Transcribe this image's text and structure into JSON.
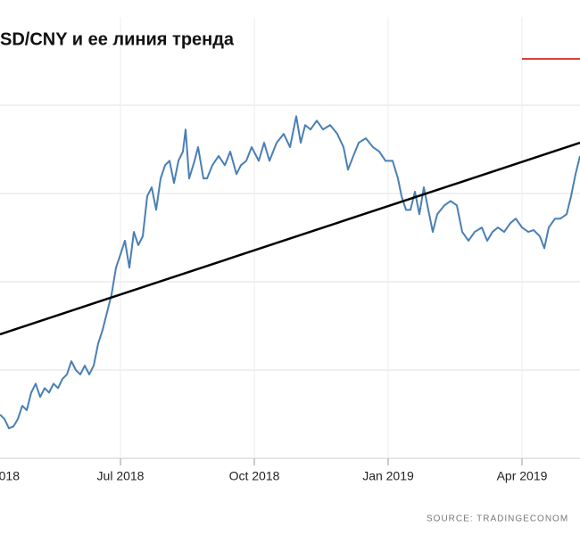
{
  "chart_data": {
    "type": "line",
    "title": "SD/CNY и ее линия тренда",
    "source": "SOURCE:  TRADINGECONOM",
    "xlim": [
      0.3,
      13.3
    ],
    "ylim": [
      6.2,
      7.2
    ],
    "xticks": [
      {
        "value": 0,
        "label": "018"
      },
      {
        "value": 3,
        "label": "Jul 2018"
      },
      {
        "value": 6,
        "label": "Oct 2018"
      },
      {
        "value": 9,
        "label": "Jan 2019"
      },
      {
        "value": 12,
        "label": "Apr 2019"
      }
    ],
    "ygrid": [
      6.4,
      6.6,
      6.8,
      7.0
    ],
    "grid": true,
    "series": [
      {
        "color": "#4a7fb5",
        "width": 2,
        "x": [
          0.3,
          0.4,
          0.5,
          0.6,
          0.7,
          0.8,
          0.9,
          1.0,
          1.1,
          1.2,
          1.3,
          1.4,
          1.5,
          1.6,
          1.7,
          1.8,
          1.9,
          2.0,
          2.1,
          2.2,
          2.3,
          2.4,
          2.5,
          2.6,
          2.7,
          2.8,
          2.9,
          3.0,
          3.1,
          3.2,
          3.3,
          3.4,
          3.5,
          3.6,
          3.7,
          3.8,
          3.9,
          4.0,
          4.1,
          4.2,
          4.3,
          4.4,
          4.46,
          4.54,
          4.66,
          4.74,
          4.86,
          4.94,
          5.06,
          5.2,
          5.34,
          5.46,
          5.6,
          5.7,
          5.82,
          5.94,
          6.1,
          6.22,
          6.34,
          6.5,
          6.66,
          6.8,
          6.94,
          7.04,
          7.14,
          7.26,
          7.4,
          7.54,
          7.7,
          7.86,
          8.0,
          8.1,
          8.22,
          8.34,
          8.5,
          8.66,
          8.8,
          8.94,
          9.1,
          9.22,
          9.3,
          9.4,
          9.5,
          9.6,
          9.7,
          9.8,
          9.9,
          10.0,
          10.1,
          10.26,
          10.4,
          10.54,
          10.66,
          10.8,
          10.94,
          11.1,
          11.22,
          11.34,
          11.46,
          11.6,
          11.74,
          11.86,
          12.0,
          12.14,
          12.26,
          12.4,
          12.5,
          12.6,
          12.74,
          12.86,
          13.0,
          13.1,
          13.2,
          13.3
        ],
        "values": [
          6.299,
          6.289,
          6.268,
          6.272,
          6.289,
          6.319,
          6.309,
          6.349,
          6.369,
          6.339,
          6.359,
          6.349,
          6.369,
          6.359,
          6.38,
          6.39,
          6.42,
          6.4,
          6.39,
          6.41,
          6.39,
          6.41,
          6.46,
          6.491,
          6.531,
          6.571,
          6.632,
          6.662,
          6.693,
          6.632,
          6.713,
          6.683,
          6.703,
          6.794,
          6.814,
          6.763,
          6.834,
          6.864,
          6.874,
          6.824,
          6.874,
          6.895,
          6.945,
          6.834,
          6.874,
          6.905,
          6.834,
          6.834,
          6.864,
          6.885,
          6.864,
          6.895,
          6.844,
          6.864,
          6.874,
          6.905,
          6.874,
          6.915,
          6.874,
          6.915,
          6.935,
          6.905,
          6.975,
          6.915,
          6.955,
          6.945,
          6.965,
          6.945,
          6.955,
          6.935,
          6.905,
          6.854,
          6.885,
          6.915,
          6.925,
          6.905,
          6.895,
          6.874,
          6.874,
          6.834,
          6.794,
          6.763,
          6.763,
          6.804,
          6.753,
          6.814,
          6.763,
          6.713,
          6.753,
          6.773,
          6.783,
          6.773,
          6.713,
          6.693,
          6.713,
          6.723,
          6.693,
          6.713,
          6.723,
          6.713,
          6.733,
          6.743,
          6.723,
          6.713,
          6.717,
          6.703,
          6.676,
          6.723,
          6.743,
          6.743,
          6.753,
          6.794,
          6.844,
          6.885
        ]
      },
      {
        "color": "#000000",
        "width": 2.5,
        "x": [
          0.3,
          13.3
        ],
        "values": [
          6.481,
          6.915
        ]
      }
    ],
    "legend_color": "#cc0000"
  }
}
